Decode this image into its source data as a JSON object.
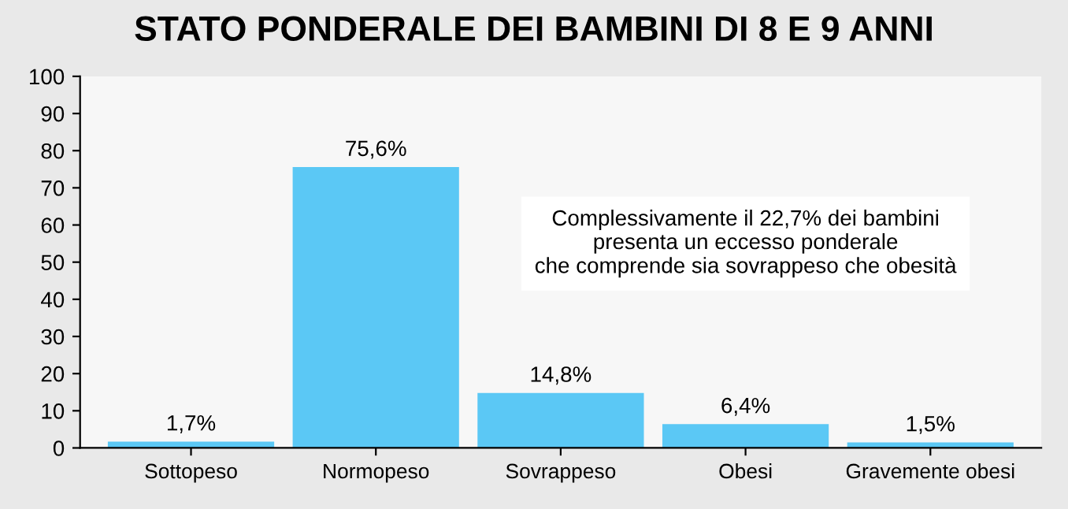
{
  "chart_data": {
    "type": "bar",
    "title": "STATO PONDERALE DEI BAMBINI DI 8 E 9 ANNI",
    "categories": [
      "Sottopeso",
      "Normopeso",
      "Sovrappeso",
      "Obesi",
      "Gravemente obesi"
    ],
    "values": [
      1.7,
      75.6,
      14.8,
      6.4,
      1.5
    ],
    "value_labels": [
      "1,7%",
      "75,6%",
      "14,8%",
      "6,4%",
      "1,5%"
    ],
    "color": "#5bc8f5",
    "ylim": [
      0,
      100
    ],
    "yticks": [
      0,
      10,
      20,
      30,
      40,
      50,
      60,
      70,
      80,
      90,
      100
    ],
    "grid": false,
    "annotations": [
      "Complessivamente il 22,7% dei bambini\npresenta un eccesso ponderale\nche comprende sia sovrappeso che obesità"
    ]
  }
}
